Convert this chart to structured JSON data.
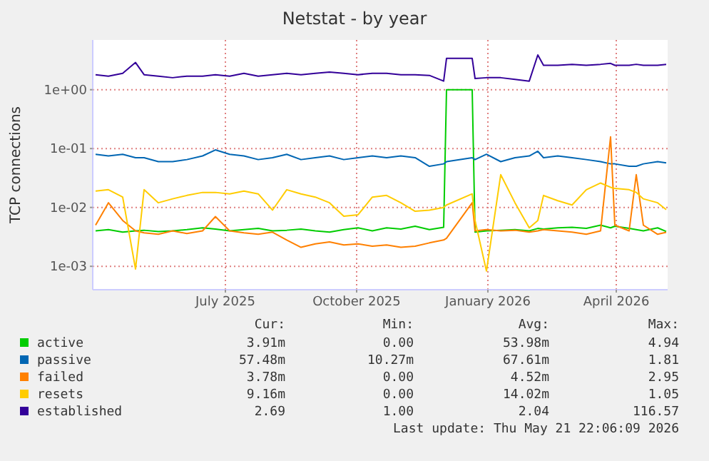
{
  "chart_data": {
    "type": "line",
    "title": "Netstat - by year",
    "ylabel": "TCP connections",
    "x": [
      "2025-04-16",
      "2025-04-25",
      "2025-05-05",
      "2025-05-14",
      "2025-05-20",
      "2025-05-30",
      "2025-06-09",
      "2025-06-19",
      "2025-06-30",
      "2025-07-09",
      "2025-07-19",
      "2025-07-29",
      "2025-08-08",
      "2025-08-18",
      "2025-08-28",
      "2025-09-07",
      "2025-09-17",
      "2025-09-27",
      "2025-10-07",
      "2025-10-17",
      "2025-10-27",
      "2025-11-06",
      "2025-11-16",
      "2025-11-26",
      "2025-12-06",
      "2025-12-16",
      "2025-12-18",
      "2026-01-05",
      "2026-01-07",
      "2026-01-15",
      "2026-01-25",
      "2026-02-04",
      "2026-02-14",
      "2026-02-20",
      "2026-02-24",
      "2026-03-06",
      "2026-03-16",
      "2026-03-26",
      "2026-04-05",
      "2026-04-12",
      "2026-04-15",
      "2026-04-25",
      "2026-04-30",
      "2026-05-05",
      "2026-05-15",
      "2026-05-21"
    ],
    "series": [
      {
        "name": "active",
        "color": "#00cc00",
        "values": [
          0.004,
          0.0042,
          0.0038,
          0.004,
          0.0041,
          0.0039,
          0.004,
          0.0042,
          0.0045,
          0.0043,
          0.004,
          0.0042,
          0.0044,
          0.004,
          0.0041,
          0.0043,
          0.004,
          0.0038,
          0.0042,
          0.0045,
          0.004,
          0.0045,
          0.0043,
          0.0048,
          0.0042,
          0.0046,
          1.0,
          1.0,
          0.0038,
          0.004,
          0.0041,
          0.0042,
          0.004,
          0.0044,
          0.0043,
          0.0045,
          0.0046,
          0.0044,
          0.005,
          0.0045,
          0.0048,
          0.0044,
          0.0042,
          0.004,
          0.0045,
          0.00391
        ]
      },
      {
        "name": "passive",
        "color": "#0066b3",
        "values": [
          0.08,
          0.075,
          0.08,
          0.07,
          0.07,
          0.06,
          0.06,
          0.065,
          0.075,
          0.095,
          0.08,
          0.075,
          0.065,
          0.07,
          0.08,
          0.065,
          0.07,
          0.075,
          0.065,
          0.07,
          0.075,
          0.07,
          0.075,
          0.07,
          0.05,
          0.055,
          0.06,
          0.07,
          0.065,
          0.08,
          0.06,
          0.07,
          0.075,
          0.09,
          0.07,
          0.075,
          0.07,
          0.065,
          0.06,
          0.055,
          0.055,
          0.05,
          0.05,
          0.055,
          0.06,
          0.057
        ]
      },
      {
        "name": "failed",
        "color": "#ff8000",
        "values": [
          0.005,
          0.012,
          0.006,
          0.004,
          0.0037,
          0.0035,
          0.004,
          0.0036,
          0.004,
          0.007,
          0.004,
          0.0037,
          0.0035,
          0.0038,
          0.0028,
          0.0021,
          0.0024,
          0.0026,
          0.0023,
          0.0024,
          0.0022,
          0.0023,
          0.0021,
          0.0022,
          0.0025,
          0.0028,
          0.003,
          0.012,
          0.004,
          0.0042,
          0.004,
          0.0041,
          0.0038,
          0.004,
          0.0042,
          0.004,
          0.0038,
          0.0035,
          0.004,
          0.158,
          0.005,
          0.004,
          0.036,
          0.005,
          0.0035,
          0.00378
        ]
      },
      {
        "name": "resets",
        "color": "#ffcc00",
        "values": [
          0.019,
          0.02,
          0.015,
          0.0009,
          0.02,
          0.012,
          0.014,
          0.016,
          0.018,
          0.018,
          0.017,
          0.019,
          0.017,
          0.009,
          0.02,
          0.017,
          0.015,
          0.012,
          0.0071,
          0.0075,
          0.015,
          0.016,
          0.012,
          0.0086,
          0.009,
          0.01,
          0.011,
          0.017,
          0.006,
          0.00083,
          0.036,
          0.012,
          0.0045,
          0.006,
          0.016,
          0.013,
          0.011,
          0.02,
          0.026,
          0.022,
          0.021,
          0.02,
          0.018,
          0.014,
          0.012,
          0.00916
        ]
      },
      {
        "name": "established",
        "color": "#330099",
        "values": [
          1.8,
          1.7,
          1.9,
          2.9,
          1.8,
          1.7,
          1.6,
          1.7,
          1.7,
          1.8,
          1.7,
          1.9,
          1.7,
          1.8,
          1.9,
          1.8,
          1.9,
          2.0,
          1.9,
          1.8,
          1.9,
          1.9,
          1.8,
          1.8,
          1.75,
          1.4,
          3.4,
          3.4,
          1.55,
          1.6,
          1.6,
          1.5,
          1.4,
          3.9,
          2.6,
          2.6,
          2.7,
          2.6,
          2.7,
          2.8,
          2.6,
          2.6,
          2.7,
          2.6,
          2.6,
          2.69
        ]
      }
    ],
    "xlim": [
      "2025-04-14",
      "2026-05-22"
    ],
    "xticks": [
      {
        "value": "2025-07-16",
        "label": "July 2025"
      },
      {
        "value": "2025-10-16",
        "label": "October 2025"
      },
      {
        "value": "2026-01-16",
        "label": "January 2026"
      },
      {
        "value": "2026-04-16",
        "label": "April 2026"
      }
    ],
    "ylim": [
      0.0004,
      7
    ],
    "yticks": [
      {
        "value": 0.001,
        "label": "1e-03"
      },
      {
        "value": 0.01,
        "label": "1e-02"
      },
      {
        "value": 0.1,
        "label": "1e-01"
      },
      {
        "value": 1,
        "label": "1e+00"
      }
    ],
    "log": true,
    "grid": true,
    "legend": "bottom",
    "line_style": "solid",
    "marker": "none",
    "annotations": [
      "Cur:",
      "Min:",
      "Avg:",
      "Max:",
      "3.91m",
      "0.00",
      "53.98m",
      "4.94",
      "57.48m",
      "10.27m",
      "67.61m",
      "1.81",
      "3.78m",
      "0.00",
      "4.52m",
      "2.95",
      "9.16m",
      "0.00",
      "14.02m",
      "1.05",
      "2.69",
      "1.00",
      "2.04",
      "116.57",
      "Last update: Thu May 21 22:06:09 2026"
    ]
  }
}
